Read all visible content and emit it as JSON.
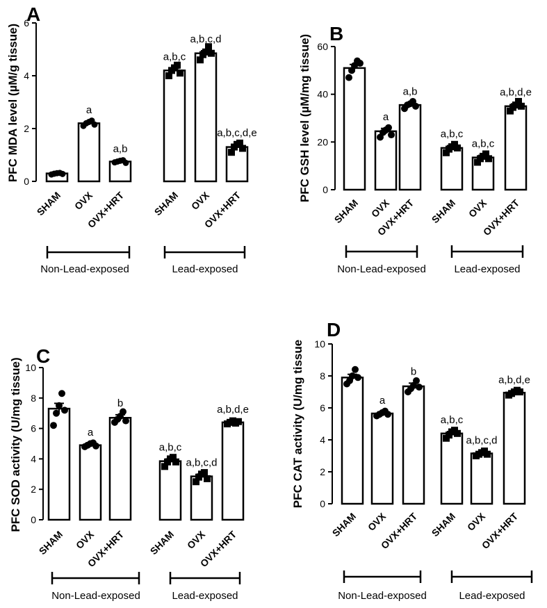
{
  "chart_data": [
    {
      "type": "bar",
      "panel": "A",
      "ylabel": "PFC MDA level (µM/g tissue)",
      "ylim": [
        0,
        6
      ],
      "yticks": [
        "0",
        "2",
        "4",
        "6"
      ],
      "categories": [
        "SHAM",
        "OVX",
        "OVX+HRT",
        "SHAM",
        "OVX",
        "OVX+HRT"
      ],
      "groups": [
        "Non-Lead-exposed",
        "Lead-exposed"
      ],
      "values": [
        0.3,
        2.2,
        0.75,
        4.2,
        4.85,
        1.3
      ],
      "sem": [
        0.03,
        0.06,
        0.04,
        0.08,
        0.1,
        0.1
      ],
      "points": [
        [
          0.26,
          0.29,
          0.31,
          0.32,
          0.28
        ],
        [
          2.1,
          2.2,
          2.25,
          2.3,
          2.15
        ],
        [
          0.72,
          0.75,
          0.78,
          0.8,
          0.7
        ],
        [
          4.0,
          4.2,
          4.3,
          4.4,
          4.1
        ],
        [
          4.6,
          4.8,
          4.9,
          5.1,
          4.85
        ],
        [
          1.1,
          1.3,
          1.4,
          1.45,
          1.25
        ]
      ],
      "annotations": [
        "",
        "a",
        "a,b",
        "a,b,c",
        "a,b,c,d",
        "a,b,c,d,e"
      ],
      "grid": false
    },
    {
      "type": "bar",
      "panel": "B",
      "ylabel": "PFC GSH level (µM/mg tissue)",
      "ylim": [
        0,
        60
      ],
      "yticks": [
        "0",
        "20",
        "40",
        "60"
      ],
      "categories": [
        "SHAM",
        "OVX",
        "OVX+HRT",
        "SHAM",
        "OVX",
        "OVX+HRT"
      ],
      "groups": [
        "Non-Lead-exposed",
        "Lead-exposed"
      ],
      "values": [
        51,
        24.5,
        35.5,
        17.5,
        13.5,
        35
      ],
      "sem": [
        1.5,
        1.2,
        0.8,
        1.0,
        0.9,
        1.0
      ],
      "points": [
        [
          47,
          50,
          52,
          54,
          53
        ],
        [
          22,
          24,
          25,
          26,
          23
        ],
        [
          34,
          35.5,
          36,
          37,
          35
        ],
        [
          15.5,
          17,
          18,
          19,
          17.5
        ],
        [
          11.5,
          13,
          14,
          15,
          13
        ],
        [
          33,
          34.5,
          35.5,
          37,
          35
        ]
      ],
      "annotations": [
        "",
        "a",
        "a,b",
        "a,b,c",
        "a,b,c",
        "a,b,d,e"
      ],
      "grid": false
    },
    {
      "type": "bar",
      "panel": "C",
      "ylabel": "PFC SOD activity (U/mg tissue)",
      "ylim": [
        0,
        10
      ],
      "yticks": [
        "0",
        "2",
        "4",
        "6",
        "8",
        "10"
      ],
      "categories": [
        "SHAM",
        "OVX",
        "OVX+HRT",
        "SHAM",
        "OVX",
        "OVX+HRT"
      ],
      "groups": [
        "Non-Lead-exposed",
        "Lead-exposed"
      ],
      "values": [
        7.3,
        4.9,
        6.7,
        3.85,
        2.85,
        6.4
      ],
      "sem": [
        0.35,
        0.08,
        0.2,
        0.15,
        0.15,
        0.08
      ],
      "points": [
        [
          6.2,
          7.0,
          7.5,
          8.3,
          7.2
        ],
        [
          4.8,
          4.9,
          5.0,
          5.05,
          4.85
        ],
        [
          6.4,
          6.6,
          6.8,
          7.1,
          6.5
        ],
        [
          3.5,
          3.8,
          4.0,
          4.1,
          3.8
        ],
        [
          2.5,
          2.8,
          3.0,
          3.1,
          2.7
        ],
        [
          6.3,
          6.4,
          6.5,
          6.35,
          6.45
        ]
      ],
      "annotations": [
        "",
        "a",
        "b",
        "a,b,c",
        "a,b,c,d",
        "a,b,d,e"
      ],
      "grid": false
    },
    {
      "type": "bar",
      "panel": "D",
      "ylabel": "PFC CAT activity (U/mg tissue",
      "ylim": [
        0,
        10
      ],
      "yticks": [
        "0",
        "2",
        "4",
        "6",
        "8",
        "10"
      ],
      "categories": [
        "SHAM",
        "OVX",
        "OVX+HRT",
        "SHAM",
        "OVX",
        "OVX+HRT"
      ],
      "groups": [
        "Non-Lead-exposed",
        "Lead-exposed"
      ],
      "values": [
        7.9,
        5.65,
        7.35,
        4.4,
        3.15,
        6.95
      ],
      "sem": [
        0.2,
        0.1,
        0.2,
        0.12,
        0.1,
        0.08
      ],
      "points": [
        [
          7.5,
          7.7,
          8.0,
          8.4,
          7.9
        ],
        [
          5.5,
          5.6,
          5.7,
          5.8,
          5.6
        ],
        [
          7.0,
          7.2,
          7.4,
          7.7,
          7.3
        ],
        [
          4.1,
          4.3,
          4.5,
          4.6,
          4.4
        ],
        [
          3.0,
          3.1,
          3.2,
          3.3,
          3.1
        ],
        [
          6.8,
          6.9,
          7.0,
          7.1,
          7.0
        ]
      ],
      "annotations": [
        "",
        "a",
        "b",
        "a,b,c",
        "a,b,c,d",
        "a,b,d,e"
      ],
      "grid": false
    }
  ]
}
